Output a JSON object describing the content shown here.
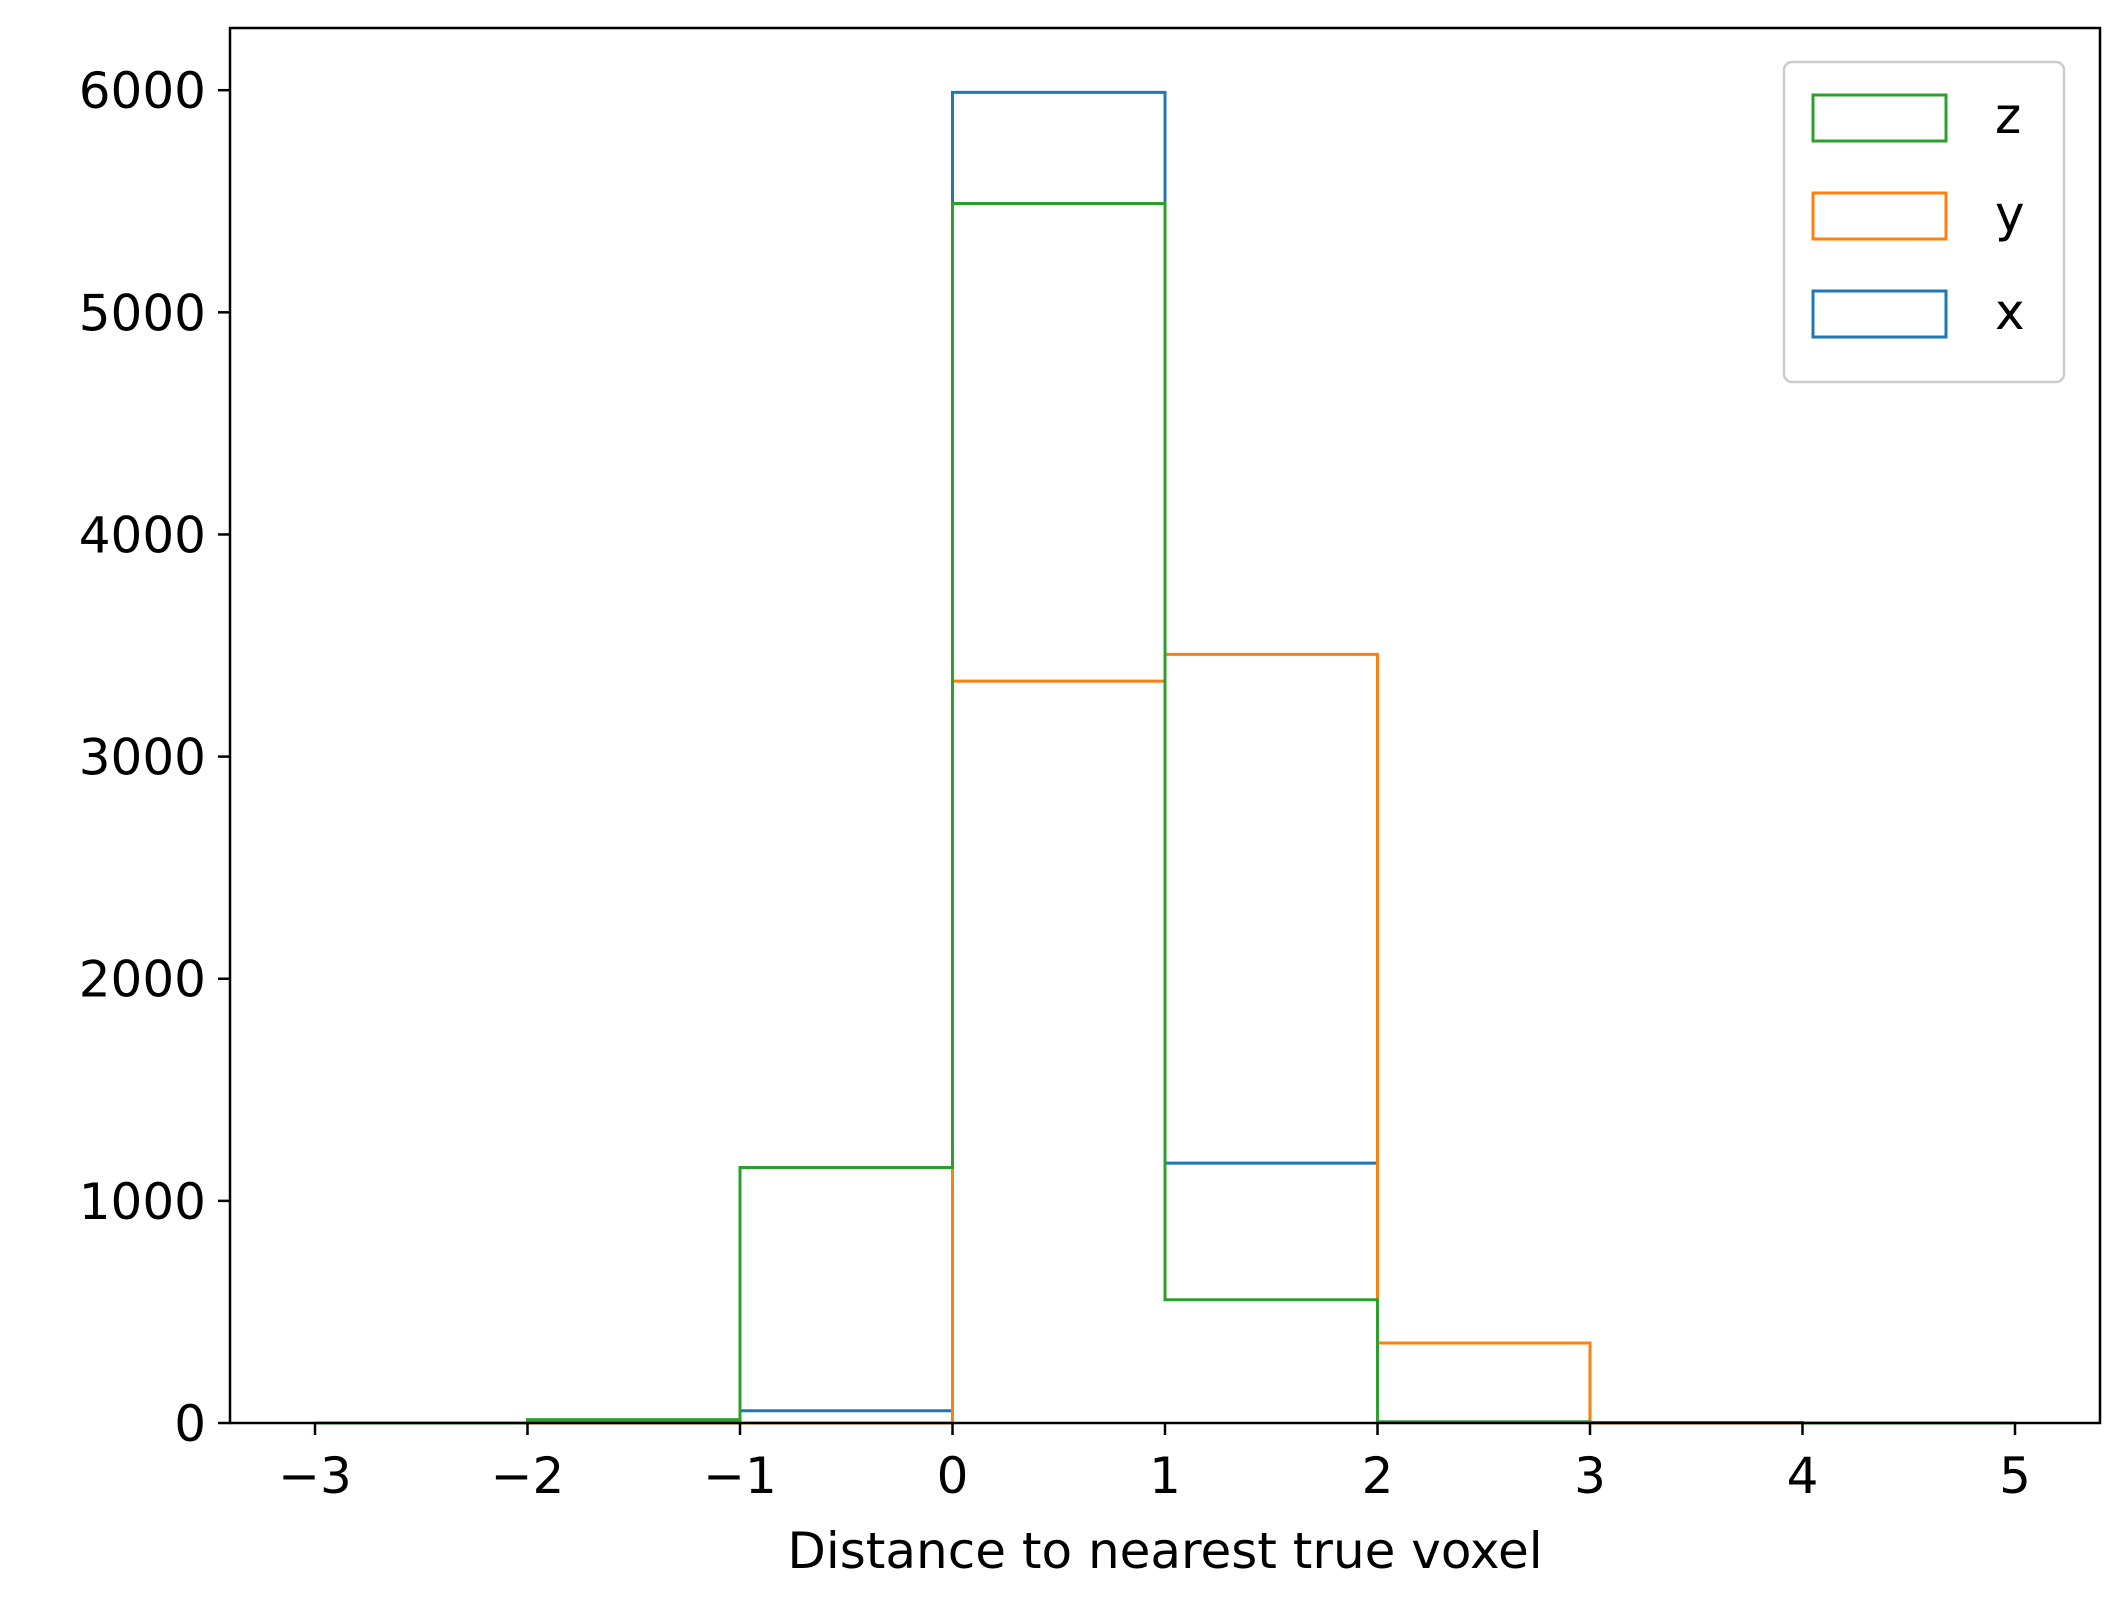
{
  "chart_data": {
    "type": "histogram",
    "title": "",
    "xlabel": "Distance to nearest true voxel",
    "ylabel": "",
    "xlim": [
      -3.4,
      5.4
    ],
    "ylim": [
      0,
      6280
    ],
    "xticks": [
      -3,
      -2,
      -1,
      0,
      1,
      2,
      3,
      4,
      5
    ],
    "xtick_labels": [
      "−3",
      "−2",
      "−1",
      "0",
      "1",
      "2",
      "3",
      "4",
      "5"
    ],
    "yticks": [
      0,
      1000,
      2000,
      3000,
      4000,
      5000,
      6000
    ],
    "ytick_labels": [
      "0",
      "1000",
      "2000",
      "3000",
      "4000",
      "5000",
      "6000"
    ],
    "bin_edges": [
      -3,
      -2,
      -1,
      0,
      1,
      2,
      3,
      4,
      5
    ],
    "series": [
      {
        "name": "x",
        "color": "#1f77b4",
        "values": [
          0,
          5,
          55,
          5990,
          1170,
          5,
          2,
          0
        ]
      },
      {
        "name": "y",
        "color": "#ff7f0e",
        "values": [
          0,
          0,
          0,
          3340,
          3460,
          360,
          0,
          0
        ]
      },
      {
        "name": "z",
        "color": "#2ca02c",
        "values": [
          0,
          15,
          1150,
          5490,
          555,
          5,
          2,
          0
        ]
      }
    ],
    "legend": {
      "position": "top-right",
      "order": [
        "z",
        "y",
        "x"
      ]
    },
    "grid": false
  }
}
